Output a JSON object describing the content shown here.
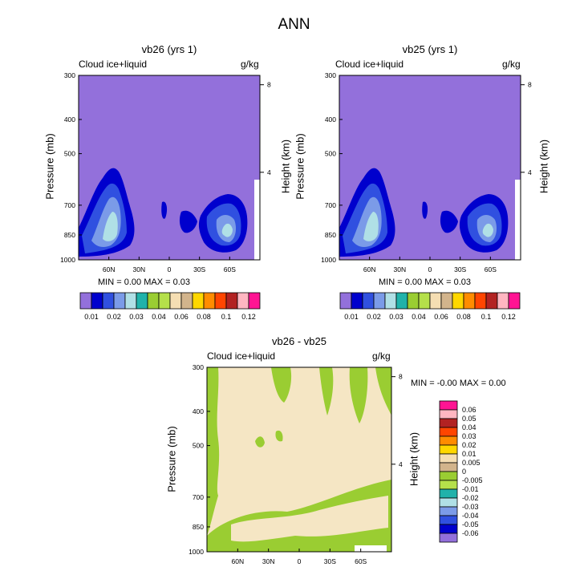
{
  "figure_title": "ANN",
  "chart_data": [
    {
      "type": "contour",
      "title": "vb26 (yrs 1)",
      "left_label": "Cloud ice+liquid",
      "right_label": "g/kg",
      "ylabel": "Pressure (mb)",
      "ylabel_right": "Height (km)",
      "pressure_ticks": [
        "300",
        "400",
        "500",
        "700",
        "850",
        "1000"
      ],
      "height_ticks": [
        "8",
        "4"
      ],
      "lat_ticks": [
        "60N",
        "30N",
        "0",
        "30S",
        "60S"
      ],
      "min_label": "MIN =",
      "min_value": "0.00",
      "max_label": "MAX =",
      "max_value": "0.03",
      "colorbar_levels": [
        "0.01",
        "0.02",
        "0.03",
        "0.04",
        "0.06",
        "0.08",
        "0.1",
        "0.12"
      ]
    },
    {
      "type": "contour",
      "title": "vb25 (yrs 1)",
      "left_label": "Cloud ice+liquid",
      "right_label": "g/kg",
      "ylabel": "Pressure (mb)",
      "ylabel_right": "Height (km)",
      "pressure_ticks": [
        "300",
        "400",
        "500",
        "700",
        "850",
        "1000"
      ],
      "height_ticks": [
        "8",
        "4"
      ],
      "lat_ticks": [
        "60N",
        "30N",
        "0",
        "30S",
        "60S"
      ],
      "min_label": "MIN =",
      "min_value": "0.00",
      "max_label": "MAX =",
      "max_value": "0.03",
      "colorbar_levels": [
        "0.01",
        "0.02",
        "0.03",
        "0.04",
        "0.06",
        "0.08",
        "0.1",
        "0.12"
      ]
    },
    {
      "type": "contour",
      "title": "vb26 - vb25",
      "left_label": "Cloud ice+liquid",
      "right_label": "g/kg",
      "ylabel": "Pressure (mb)",
      "ylabel_right": "Height (km)",
      "pressure_ticks": [
        "300",
        "400",
        "500",
        "700",
        "850",
        "1000"
      ],
      "height_ticks": [
        "8",
        "4"
      ],
      "lat_ticks": [
        "60N",
        "30N",
        "0",
        "30S",
        "60S"
      ],
      "min_label": "MIN =",
      "min_value": "-0.00",
      "max_label": "MAX =",
      "max_value": "0.00",
      "colorbar_levels": [
        "0.06",
        "0.05",
        "0.04",
        "0.03",
        "0.02",
        "0.01",
        "0.005",
        "0",
        "-0.005",
        "-0.01",
        "-0.02",
        "-0.03",
        "-0.04",
        "-0.05",
        "-0.06"
      ]
    }
  ],
  "colors": {
    "bg_purple": "#9370db",
    "dark_blue": "#0000cd",
    "blue": "#3050e0",
    "light_blue": "#7b9be8",
    "pale_cyan": "#b0e0e6",
    "teal": "#20b2aa",
    "cream": "#f5e6c4",
    "green": "#9acd32",
    "top_palette": [
      "#9370db",
      "#0000cd",
      "#3050e0",
      "#7b9be8",
      "#b0e0e6",
      "#20b2aa",
      "#9acd32",
      "#b5e04a",
      "#f5deb3",
      "#d2b48c",
      "#ffd700",
      "#ff8c00",
      "#ff4500",
      "#b22222",
      "#ffb6c1",
      "#ff1493"
    ],
    "diff_palette": [
      "#ff1493",
      "#ffb6c1",
      "#b22222",
      "#ff4500",
      "#ff8c00",
      "#ffd700",
      "#f5deb3",
      "#d2b48c",
      "#9acd32",
      "#b5e04a",
      "#20b2aa",
      "#b0e0e6",
      "#7b9be8",
      "#3050e0",
      "#0000cd",
      "#9370db"
    ]
  }
}
